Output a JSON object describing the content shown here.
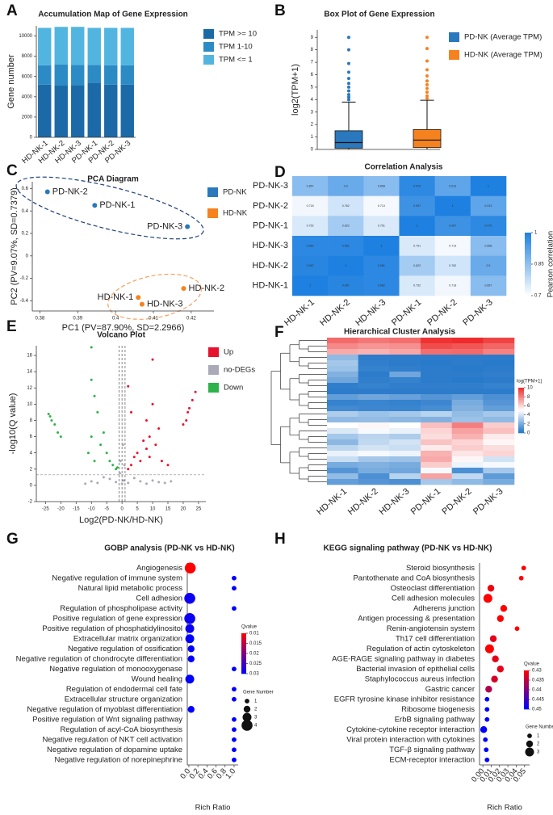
{
  "chart_data": [
    {
      "panel": "A",
      "type": "bar",
      "stacked": true,
      "title": "Accumulation Map of Gene Expression",
      "ylabel": "Gene number",
      "categories": [
        "HD-NK-1",
        "HD-NK-2",
        "HD-NK-3",
        "PD-NK-1",
        "PD-NK-2",
        "PD-NK-3"
      ],
      "series": [
        {
          "name": "TPM >= 10",
          "color": "#1b6aa7",
          "values": [
            5200,
            5100,
            5150,
            5400,
            5200,
            5200
          ]
        },
        {
          "name": "TPM 1-10",
          "color": "#2c8bc4",
          "values": [
            1900,
            2100,
            2000,
            1750,
            1900,
            1900
          ]
        },
        {
          "name": "TPM <= 1",
          "color": "#52b5e0",
          "values": [
            3700,
            3700,
            3750,
            3650,
            3700,
            3700
          ]
        }
      ],
      "ylim": [
        0,
        11000
      ],
      "yticks": [
        0,
        2000,
        4000,
        6000,
        8000,
        10000
      ]
    },
    {
      "panel": "B",
      "type": "box",
      "title": "Box Plot of Gene Expression",
      "ylabel": "log2(TPM+1)",
      "series": [
        {
          "name": "PD-NK (Average TPM)",
          "color": "#2a78bd",
          "min": 0,
          "q1": 0.1,
          "median": 0.55,
          "q3": 1.5,
          "max": 3.8,
          "outliers": [
            4.0,
            4.2,
            4.4,
            4.7,
            5.0,
            5.3,
            5.7,
            6.2,
            6.9,
            8.0,
            9.0
          ]
        },
        {
          "name": "HD-NK (Average TPM)",
          "color": "#f5821f",
          "min": 0,
          "q1": 0.15,
          "median": 0.75,
          "q3": 1.6,
          "max": 3.95,
          "outliers": [
            4.1,
            4.3,
            4.6,
            4.9,
            5.2,
            5.5,
            5.9,
            6.4,
            7.1,
            8.1,
            9.0
          ]
        }
      ],
      "ylim": [
        0,
        9.6
      ],
      "yticks": [
        0,
        1,
        2,
        3,
        4,
        5,
        6,
        7,
        8,
        9
      ]
    },
    {
      "panel": "C",
      "type": "scatter",
      "title": "PCA Diagram",
      "xlabel": "PC1 (PV=87.90%, SD=2.2966)",
      "ylabel": "PC2 (PV=9.07%, SD=0.7379)",
      "xlim": [
        0.378,
        0.426
      ],
      "xticks": [
        0.38,
        0.39,
        0.4,
        0.41,
        0.42
      ],
      "ylim": [
        -0.49,
        0.66
      ],
      "yticks": [
        -0.4,
        -0.2,
        0,
        0.2,
        0.4,
        0.6
      ],
      "ellipse": true,
      "series": [
        {
          "name": "PD-NK",
          "color": "#2a78bd",
          "x": [
            0.382,
            0.3945,
            0.419
          ],
          "values": [
            0.57,
            0.45,
            0.26
          ],
          "labels": [
            "PD-NK-2",
            "PD-NK-1",
            "PD-NK-3"
          ]
        },
        {
          "name": "HD-NK",
          "color": "#f5821f",
          "x": [
            0.406,
            0.418,
            0.407
          ],
          "values": [
            -0.37,
            -0.29,
            -0.43
          ],
          "labels": [
            "HD-NK-1",
            "HD-NK-2",
            "HD-NK-3"
          ]
        }
      ]
    },
    {
      "panel": "D",
      "type": "heatmap",
      "title": "Correlation Analysis",
      "annotate": true,
      "rows": [
        "PD-NK-3",
        "PD-NK-2",
        "PD-NK-1",
        "HD-NK-3",
        "HD-NK-2",
        "HD-NK-1"
      ],
      "columns": [
        "HD-NK-1",
        "HD-NK-2",
        "HD-NK-3",
        "PD-NK-1",
        "PD-NK-2",
        "PD-NK-3"
      ],
      "values": [
        [
          0.857,
          0.9,
          0.858,
          0.979,
          0.913,
          1
        ],
        [
          0.718,
          0.762,
          0.713,
          0.957,
          1,
          0.913
        ],
        [
          0.752,
          0.822,
          0.751,
          1,
          0.957,
          0.979
        ],
        [
          0.982,
          0.981,
          1,
          0.751,
          0.713,
          0.858
        ],
        [
          0.987,
          1,
          0.981,
          0.822,
          0.762,
          0.9
        ],
        [
          1,
          0.987,
          0.982,
          0.752,
          0.718,
          0.857
        ]
      ],
      "colorbar_label": "Pearson correlation",
      "clim": [
        0.7,
        1
      ],
      "cticks": [
        0.7,
        0.85,
        1
      ],
      "low_color": "#ffffff",
      "high_color": "#1e80e0"
    },
    {
      "panel": "E",
      "type": "scatter",
      "title": "Volcano Plot",
      "xlabel": "Log2(PD-NK/HD-NK)",
      "ylabel": "-log10(Q value)",
      "xlim": [
        -28,
        27.4
      ],
      "xticks": [
        -25,
        -20,
        -15,
        -10,
        -5,
        0,
        5,
        10,
        15,
        20,
        25
      ],
      "ylim": [
        -2,
        17.2
      ],
      "yticks": [
        -2,
        0,
        2,
        4,
        6,
        8,
        10,
        12,
        14,
        16
      ],
      "hlines": [
        1.3
      ],
      "vlines": [
        -1,
        0,
        1
      ],
      "series": [
        {
          "name": "Up",
          "color": "#e8112d",
          "x": [
            21,
            22,
            23,
            24,
            20,
            21.5,
            10,
            8,
            9,
            11,
            7,
            5,
            12,
            6,
            4,
            3,
            2,
            13,
            9,
            15,
            3,
            2,
            10,
            8
          ],
          "values": [
            8,
            9.5,
            10.5,
            11.5,
            7.5,
            9,
            10,
            8,
            6,
            5,
            5.5,
            4,
            7,
            3,
            3.5,
            2.5,
            2,
            3,
            3.5,
            2.5,
            9,
            12.2,
            15.5,
            4.5
          ]
        },
        {
          "name": "no-DEGs",
          "color": "#a9a9b8",
          "x": [
            -10,
            -8,
            -6,
            -4,
            -2,
            0,
            0.5,
            2,
            4,
            6,
            8,
            10,
            12,
            14,
            -12,
            -0.5,
            0.3,
            -0.7,
            0.8,
            16
          ],
          "values": [
            0.5,
            0.3,
            1,
            0.8,
            0.4,
            0.2,
            0.6,
            0.3,
            0.9,
            0.5,
            0.2,
            0.6,
            0.4,
            0.3,
            0.2,
            3,
            5,
            1.5,
            2.5,
            0.5
          ]
        },
        {
          "name": "Down",
          "color": "#2db34a",
          "x": [
            -24,
            -23,
            -22,
            -21,
            -20,
            -23.5,
            -10,
            -9,
            -8,
            -10,
            -7,
            -5,
            -6,
            -4,
            -3,
            -2,
            -11,
            -9,
            -1.5,
            -10
          ],
          "values": [
            8.8,
            8,
            7.5,
            6.5,
            6,
            8.5,
            13,
            11,
            9,
            6,
            5,
            4,
            6.5,
            3,
            2.5,
            2,
            4,
            3,
            2.2,
            17
          ]
        }
      ]
    },
    {
      "panel": "F",
      "type": "heatmap",
      "title": "Hierarchical Cluster Analysis",
      "columns": [
        "HD-NK-1",
        "HD-NK-2",
        "HD-NK-3",
        "PD-NK-1",
        "PD-NK-2",
        "PD-NK-3"
      ],
      "values": [
        [
          8.5,
          8.2,
          8.4,
          9.8,
          10,
          9.4
        ],
        [
          7.8,
          7.5,
          7.6,
          9.2,
          9.0,
          8.6
        ],
        [
          7.0,
          6.8,
          7.1,
          8.4,
          8.5,
          7.9
        ],
        [
          2.5,
          0.3,
          0.3,
          0.3,
          0.3,
          0.3
        ],
        [
          3.0,
          0.4,
          0.3,
          0.2,
          0.3,
          0.2
        ],
        [
          2.8,
          0.5,
          0.4,
          0.3,
          0.2,
          0.3
        ],
        [
          2.2,
          0.3,
          1.8,
          0.3,
          0.3,
          0.4
        ],
        [
          1.8,
          0.4,
          0.5,
          0.3,
          0.2,
          0.3
        ],
        [
          0.4,
          0.5,
          0.4,
          0.4,
          0.4,
          0.5
        ],
        [
          0.3,
          0.3,
          0.3,
          0.3,
          0.3,
          0.3
        ],
        [
          1.5,
          1.8,
          1.6,
          1.2,
          1.5,
          1.0
        ],
        [
          0.5,
          0.6,
          0.5,
          0.7,
          2.0,
          1.2
        ],
        [
          0.8,
          0.7,
          0.6,
          0.9,
          2.2,
          1.5
        ],
        [
          3.2,
          2.8,
          3.0,
          3.4,
          2.6,
          3.0
        ],
        [
          2.5,
          2.6,
          2.4,
          2.2,
          2.8,
          2.5
        ],
        [
          5.0,
          5.2,
          5.0,
          6.5,
          8.0,
          6.2
        ],
        [
          4.2,
          4.8,
          4.5,
          6.0,
          7.2,
          6.5
        ],
        [
          3.0,
          3.5,
          3.2,
          5.8,
          6.8,
          5.5
        ],
        [
          2.4,
          3.6,
          4.0,
          6.4,
          6.0,
          5.2
        ],
        [
          3.5,
          4.0,
          3.8,
          5.5,
          6.2,
          5.8
        ],
        [
          4.5,
          4.8,
          4.6,
          6.8,
          5.6,
          6.0
        ],
        [
          3.8,
          3.0,
          2.8,
          7.0,
          5.2,
          4.0
        ],
        [
          2.0,
          2.2,
          2.0,
          6.2,
          4.6,
          4.8
        ],
        [
          1.2,
          2.0,
          1.8,
          4.8,
          1.0,
          3.0
        ],
        [
          2.6,
          1.0,
          3.4,
          7.2,
          3.6,
          1.4
        ],
        [
          1.5,
          1.2,
          1.0,
          3.0,
          2.5,
          2.0
        ]
      ],
      "colorbar_label": "log(TPM+1)",
      "clim": [
        0,
        10
      ],
      "cticks": [
        0,
        2,
        4,
        6,
        8,
        10
      ],
      "low_color": "#1f74c8",
      "mid_color": "#ffffff",
      "high_color": "#ee2a2a"
    },
    {
      "panel": "G",
      "type": "dot",
      "title": "GOBP analysis (PD-NK vs HD-NK)",
      "xlabel": "Rich Ratio",
      "categories": [
        "Angiogenesis",
        "Negative regulation of immune system",
        "Natural lipid metabolic process",
        "Cell adhesion",
        "Regulation of phospholipase activity",
        "Positive regulation of gene expression",
        "Positive regulation of phosphatidylinositol",
        "Extracellular matrix organization",
        "Negative regulation of ossification",
        "Negative regulation of chondrocyte differentiation",
        "Negative regulation of monooxygenase",
        "Wound healing",
        "Regulation of endodermal cell fate",
        "Extracellular structure organization",
        "Negative regulation of myoblast differentiation",
        "Positive regulation of Wnt signaling pathway",
        "Regulation of acyl-CoA biosynthesis",
        "Negative regulation of NKT cell activation",
        "Negative regulation of dopamine uptake",
        "Negative regulation of norepinephrine"
      ],
      "values": [
        0.03,
        1,
        1,
        0.02,
        1,
        0.02,
        0.02,
        0.02,
        0.05,
        0.05,
        1,
        0.02,
        1,
        1,
        0.05,
        1,
        1,
        1,
        1,
        1
      ],
      "sizes": [
        4,
        1,
        1,
        4,
        1,
        4,
        3,
        3,
        2,
        2,
        1,
        3,
        1,
        1,
        2,
        1,
        1,
        1,
        1,
        1
      ],
      "qvalues": [
        0.01,
        0.03,
        0.03,
        0.029,
        0.03,
        0.029,
        0.029,
        0.03,
        0.03,
        0.03,
        0.03,
        0.03,
        0.03,
        0.03,
        0.03,
        0.03,
        0.03,
        0.03,
        0.03,
        0.03
      ],
      "xlim": [
        -0.035,
        1.09
      ],
      "xticks": [
        {
          "value": 0,
          "label": "0.0"
        },
        0.2,
        0.4,
        0.6,
        0.8,
        {
          "value": 1,
          "label": "1.0"
        }
      ],
      "color_label": "Qvalue",
      "clim": [
        0.01,
        0.03
      ],
      "cticks": [
        0.01,
        0.015,
        0.02,
        0.025,
        0.03
      ],
      "low_color": "#ff0000",
      "high_color": "#0000ff",
      "size_label": "Gene Number",
      "size_ticks": [
        1,
        2,
        3,
        4
      ]
    },
    {
      "panel": "H",
      "type": "dot",
      "title": "KEGG signaling pathway (PD-NK vs HD-NK)",
      "xlabel": "Rich Ratio",
      "categories": [
        "Steroid biosynthesis",
        "Pantothenate and CoA biosynthesis",
        "Osteoclast differentiation",
        "Cell adhesion molecules",
        "Adherens junction",
        "Antigen processing & presentation",
        "Renin-angiotensin system",
        "Th17 cell differentiation",
        "Regulation of actin cytoskeleton",
        "AGE-RAGE signaling pathway in diabetes",
        "Bacterial invasion of epithelial cells",
        "Staphylococcus aureus infection",
        "Gastric cancer",
        "EGFR tyrosine kinase inhibitor resistance",
        "Ribosome biogenesis",
        "ErbB signaling pathway",
        "Cytokine-cytokine receptor interaction",
        "Viral protein interaction with cytokines",
        "TGF-β signaling pathway",
        "ECM-receptor interaction"
      ],
      "values": [
        0.049,
        0.046,
        0.0096,
        0.006,
        0.025,
        0.021,
        0.041,
        0.0125,
        0.008,
        0.015,
        0.021,
        0.014,
        0.007,
        0.005,
        0.005,
        0.005,
        0.001,
        0.003,
        0.004,
        0.005
      ],
      "sizes": [
        1,
        1,
        2,
        3,
        2,
        2,
        1,
        2,
        3,
        2,
        2,
        2,
        2,
        1,
        1,
        1,
        2,
        1,
        1,
        1
      ],
      "qvalues": [
        0.43,
        0.43,
        0.431,
        0.43,
        0.43,
        0.43,
        0.43,
        0.432,
        0.43,
        0.432,
        0.432,
        0.433,
        0.436,
        0.45,
        0.45,
        0.45,
        0.45,
        0.45,
        0.45,
        0.45
      ],
      "xlim": [
        -0.004,
        0.056
      ],
      "xticks": [
        {
          "value": 0,
          "label": "0.00"
        },
        0.01,
        0.02,
        0.03,
        0.04,
        0.05
      ],
      "color_label": "Qvalue",
      "clim": [
        0.43,
        0.45
      ],
      "cticks": [
        0.43,
        0.435,
        0.44,
        0.445,
        0.45
      ],
      "low_color": "#ff0000",
      "high_color": "#0000ff",
      "size_label": "Gene Number",
      "size_ticks": [
        1,
        2,
        3
      ]
    }
  ]
}
